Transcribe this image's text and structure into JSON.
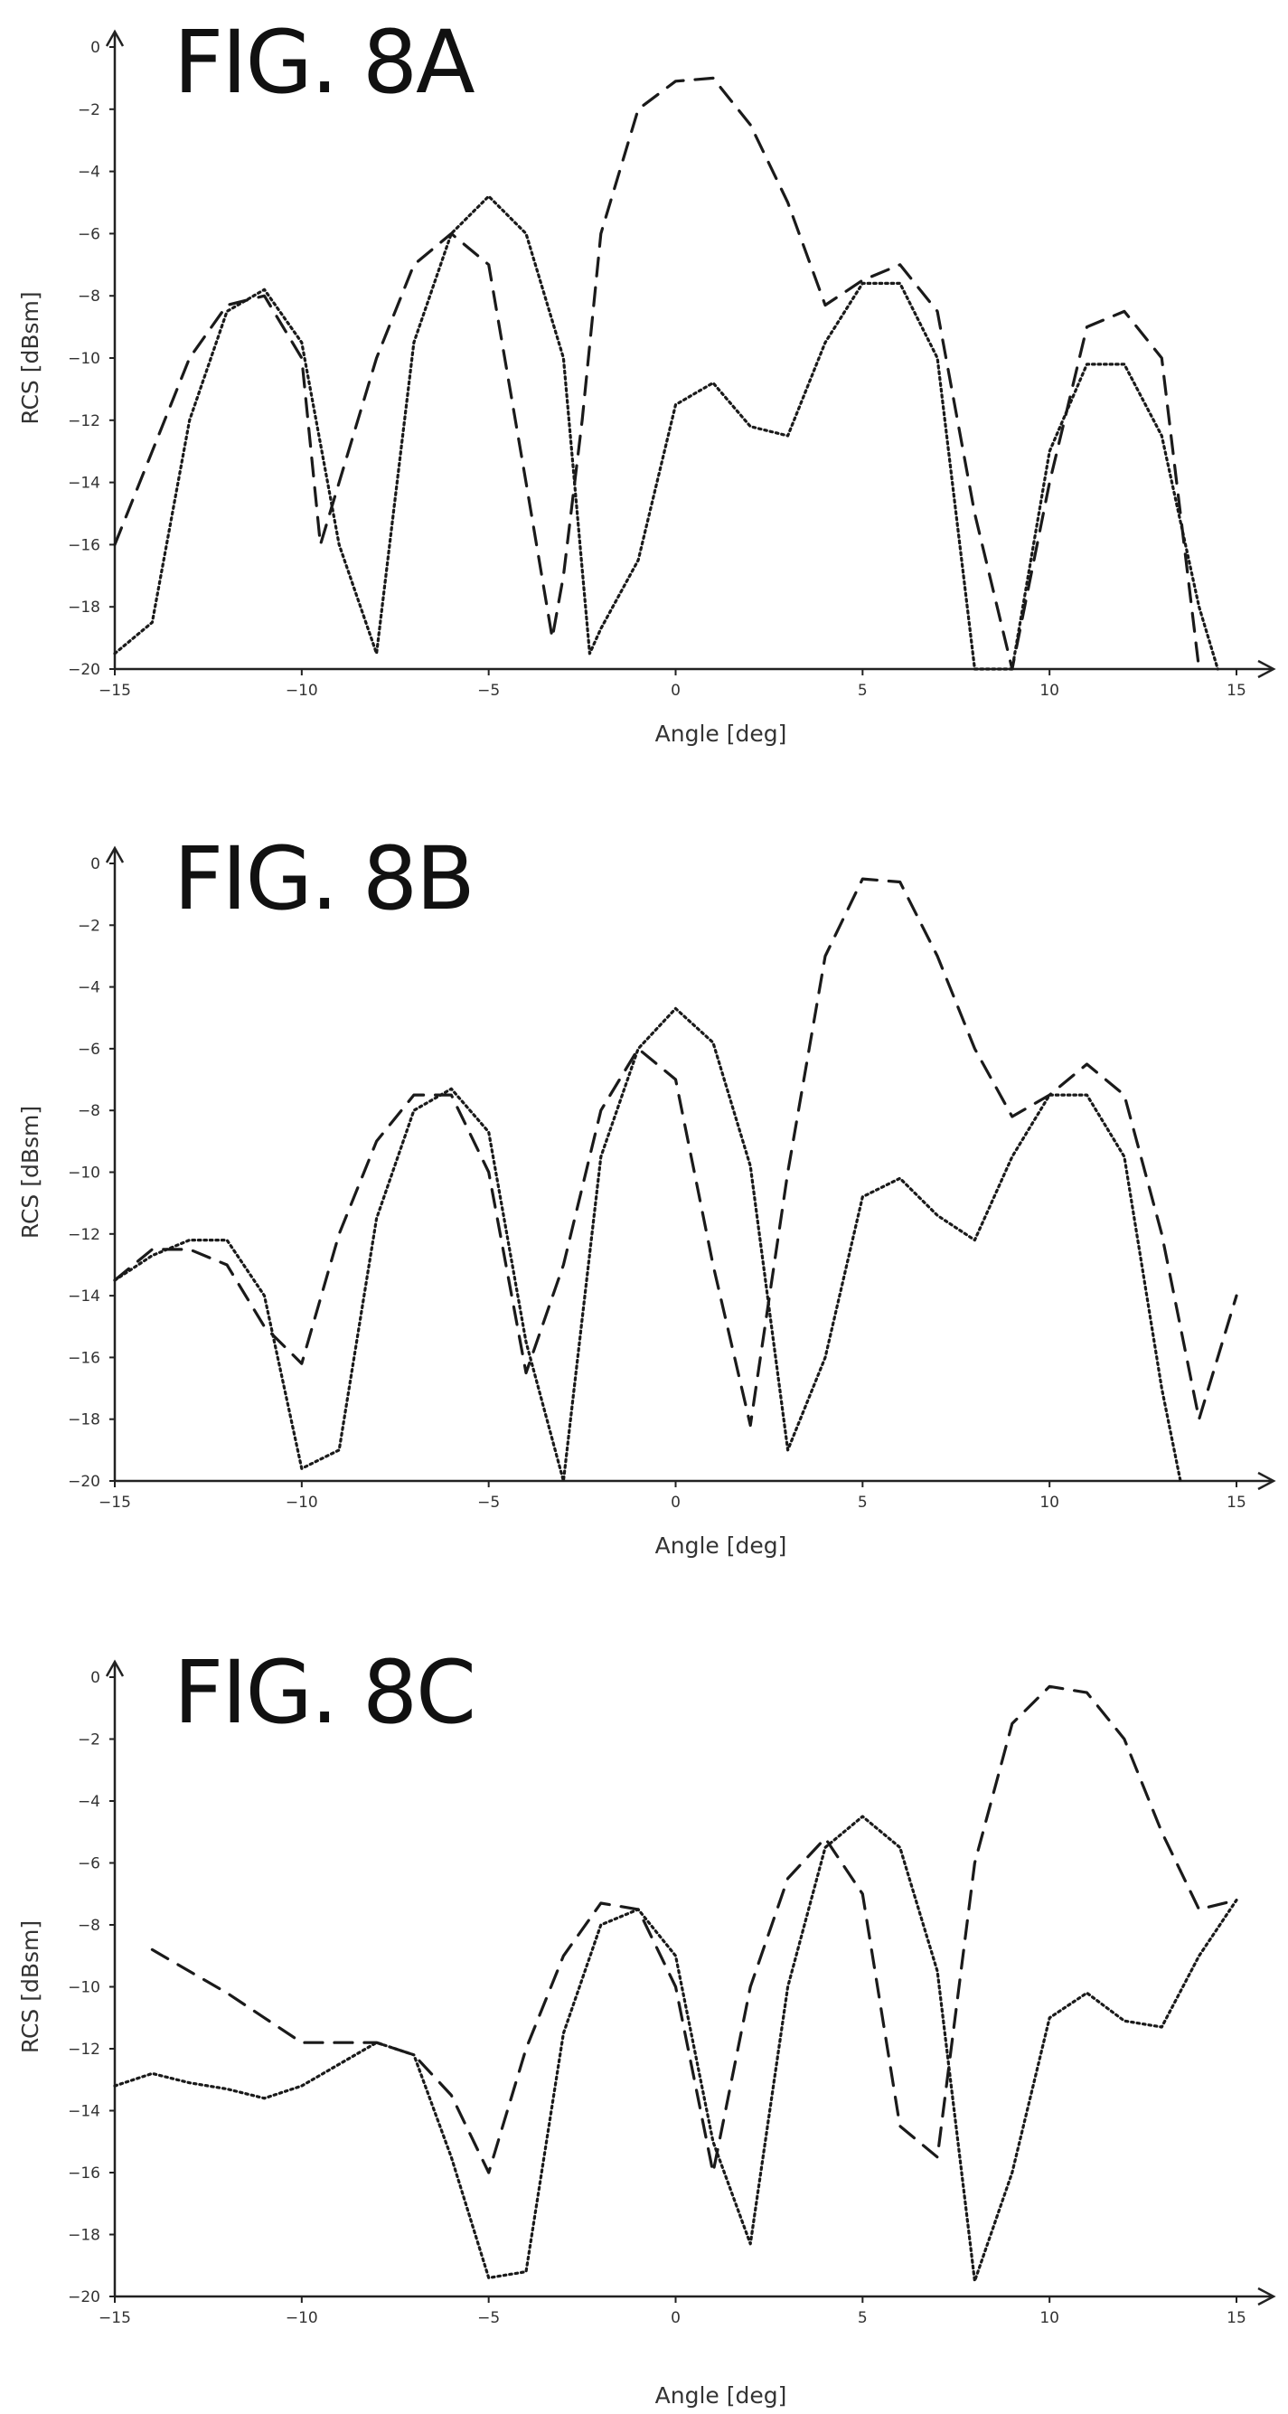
{
  "chart_data": [
    {
      "type": "line",
      "title": "FIG. 8A",
      "xlabel": "Angle [deg]",
      "ylabel": "RCS [dBsm]",
      "xlim": [
        -15,
        15
      ],
      "ylim": [
        -20,
        0
      ],
      "xticks": [
        -15,
        -10,
        -5,
        0,
        5,
        10,
        15
      ],
      "yticks": [
        0,
        -2,
        -4,
        -6,
        -8,
        -10,
        -12,
        -14,
        -16,
        -18,
        -20
      ],
      "grid": false,
      "series": [
        {
          "style": "dashed",
          "x": [
            -15,
            -14,
            -13,
            -12,
            -11,
            -10,
            -9.5,
            -9,
            -8,
            -7,
            -6,
            -5,
            -4,
            -3.3,
            -3,
            -2.5,
            -2,
            -1,
            0,
            1,
            2,
            3,
            4,
            5,
            6,
            7,
            8,
            9,
            10,
            11,
            12,
            13,
            14
          ],
          "y": [
            -16,
            -13,
            -10,
            -8.3,
            -8.0,
            -10,
            -16.0,
            -14,
            -10,
            -7,
            -6,
            -7,
            -14,
            -19,
            -17,
            -12,
            -6,
            -2,
            -1.1,
            -1,
            -2.5,
            -5,
            -8.3,
            -7.5,
            -7.0,
            -8.5,
            -15,
            -20,
            -14,
            -9,
            -8.5,
            -10,
            -20
          ]
        },
        {
          "style": "dotted",
          "x": [
            -15,
            -14,
            -13,
            -12,
            -11,
            -10,
            -9,
            -8,
            -7,
            -6,
            -5,
            -4,
            -3,
            -2.3,
            -2,
            -1,
            0,
            1,
            2,
            3,
            4,
            5,
            6,
            7,
            8,
            9,
            10,
            11,
            12,
            13,
            14,
            14.5
          ],
          "y": [
            -19.5,
            -18.5,
            -12,
            -8.5,
            -7.8,
            -9.5,
            -16,
            -19.5,
            -9.5,
            -6,
            -4.8,
            -6,
            -10,
            -19.5,
            -18.7,
            -16.5,
            -11.5,
            -10.8,
            -12.2,
            -12.5,
            -9.5,
            -7.6,
            -7.6,
            -10,
            -20,
            -20,
            -13,
            -10.2,
            -10.2,
            -12.5,
            -18,
            -20
          ]
        }
      ]
    },
    {
      "type": "line",
      "title": "FIG. 8B",
      "xlabel": "Angle [deg]",
      "ylabel": "RCS [dBsm]",
      "xlim": [
        -15,
        15
      ],
      "ylim": [
        -20,
        0
      ],
      "xticks": [
        -15,
        -10,
        -5,
        0,
        5,
        10,
        15
      ],
      "yticks": [
        0,
        -2,
        -4,
        -6,
        -8,
        -10,
        -12,
        -14,
        -16,
        -18,
        -20
      ],
      "grid": false,
      "series": [
        {
          "style": "dashed",
          "x": [
            -15,
            -14,
            -13,
            -12,
            -11,
            -10,
            -9,
            -8,
            -7,
            -6,
            -5,
            -4,
            -3,
            -2,
            -1,
            0,
            1,
            2,
            3,
            4,
            5,
            6,
            7,
            8,
            9,
            10,
            11,
            12,
            13,
            14,
            15
          ],
          "y": [
            -13.5,
            -12.5,
            -12.5,
            -13,
            -15,
            -16.2,
            -12,
            -9,
            -7.5,
            -7.5,
            -10,
            -16.5,
            -13,
            -8,
            -6,
            -7,
            -13,
            -18.2,
            -10,
            -3,
            -0.5,
            -0.6,
            -3,
            -6,
            -8.2,
            -7.5,
            -6.5,
            -7.5,
            -12,
            -18,
            -14
          ]
        },
        {
          "style": "dotted",
          "x": [
            -15,
            -14,
            -13,
            -12,
            -11,
            -10,
            -9,
            -8,
            -7,
            -6,
            -5,
            -4,
            -3,
            -2,
            -1,
            0,
            1,
            2,
            3,
            4,
            5,
            6,
            7,
            8,
            9,
            10,
            11,
            12,
            13,
            13.5
          ],
          "y": [
            -13.5,
            -12.7,
            -12.2,
            -12.2,
            -14,
            -19.6,
            -19,
            -11.5,
            -8,
            -7.3,
            -8.7,
            -15.5,
            -20,
            -9.5,
            -6,
            -4.7,
            -5.8,
            -9.8,
            -19,
            -16,
            -10.8,
            -10.2,
            -11.4,
            -12.2,
            -9.5,
            -7.5,
            -7.5,
            -9.5,
            -17,
            -20
          ]
        }
      ]
    },
    {
      "type": "line",
      "title": "FIG. 8C",
      "xlabel": "Angle [deg]",
      "ylabel": "RCS [dBsm]",
      "xlim": [
        -15,
        15
      ],
      "ylim": [
        -20,
        0
      ],
      "xticks": [
        -15,
        -10,
        -5,
        0,
        5,
        10,
        15
      ],
      "yticks": [
        0,
        -2,
        -4,
        -6,
        -8,
        -10,
        -12,
        -14,
        -16,
        -18,
        -20
      ],
      "grid": false,
      "series": [
        {
          "style": "dashed",
          "x": [
            -14,
            -13,
            -12,
            -11,
            -10,
            -9,
            -8,
            -7,
            -6,
            -5,
            -4,
            -3,
            -2,
            -1,
            0,
            1,
            2,
            3,
            4,
            5,
            6,
            7,
            8,
            9,
            10,
            11,
            12,
            13,
            14,
            15
          ],
          "y": [
            -8.8,
            -9.5,
            -10.2,
            -11,
            -11.8,
            -11.8,
            -11.8,
            -12.2,
            -13.5,
            -16,
            -12,
            -9,
            -7.3,
            -7.5,
            -10,
            -16,
            -10,
            -6.5,
            -5.2,
            -7,
            -14.5,
            -15.5,
            -6,
            -1.5,
            -0.3,
            -0.5,
            -2,
            -5,
            -7.5,
            -7.2
          ]
        },
        {
          "style": "dotted",
          "x": [
            -15,
            -14,
            -13,
            -12,
            -11,
            -10,
            -9,
            -8,
            -7,
            -6,
            -5,
            -4,
            -3,
            -2,
            -1,
            0,
            1,
            2,
            3,
            4,
            5,
            6,
            7,
            8,
            9,
            10,
            11,
            12,
            13,
            14,
            15
          ],
          "y": [
            -13.2,
            -12.8,
            -13.1,
            -13.3,
            -13.6,
            -13.2,
            -12.5,
            -11.8,
            -12.2,
            -15.5,
            -19.4,
            -19.2,
            -11.5,
            -8,
            -7.5,
            -9,
            -15,
            -18.3,
            -10,
            -5.5,
            -4.5,
            -5.5,
            -9.5,
            -19.5,
            -16,
            -11,
            -10.2,
            -11.1,
            -11.3,
            -9,
            -7.2
          ]
        }
      ]
    }
  ]
}
